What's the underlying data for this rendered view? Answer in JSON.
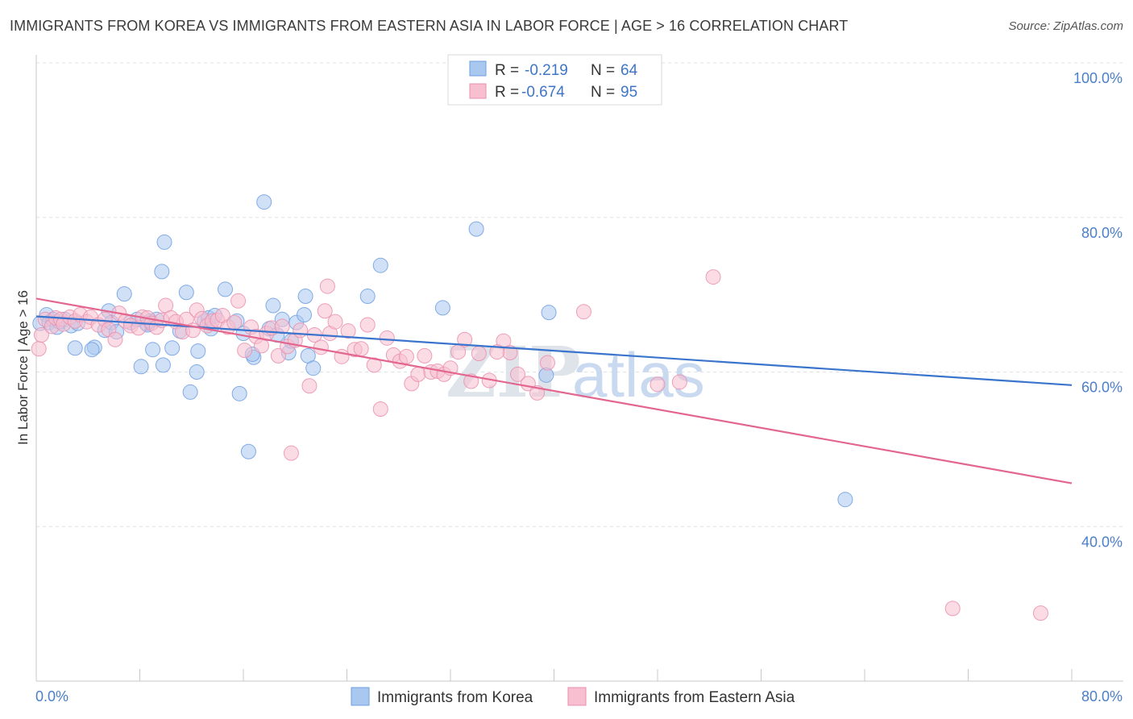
{
  "header": {
    "title": "IMMIGRANTS FROM KOREA VS IMMIGRANTS FROM EASTERN ASIA IN LABOR FORCE | AGE > 16 CORRELATION CHART",
    "source": "Source: ZipAtlas.com"
  },
  "legend": {
    "rows": [
      {
        "r_label": "R =",
        "r_value": "-0.219",
        "n_label": "N =",
        "n_value": "64"
      },
      {
        "r_label": "R =",
        "r_value": "-0.674",
        "n_label": "N =",
        "n_value": "95"
      }
    ]
  },
  "watermark": {
    "zip": "ZIP",
    "atlas": "atlas"
  },
  "colors": {
    "korea_fill": "#a9c8f0",
    "korea_stroke": "#6f9ee0",
    "korea_line": "#3a74cc",
    "easia_fill": "#f7bfd0",
    "easia_stroke": "#ea8fae",
    "easia_line": "#e3668f",
    "grid": "#dde1e6",
    "axis": "#c8c8c8",
    "tick_text": "#4a7fc9"
  },
  "chart_data": {
    "type": "scatter",
    "title": "IMMIGRANTS FROM KOREA VS IMMIGRANTS FROM EASTERN ASIA IN LABOR FORCE | AGE > 16 CORRELATION CHART",
    "xlabel": "",
    "ylabel": "In Labor Force | Age > 16",
    "xlim": [
      0,
      80
    ],
    "ylim": [
      20,
      100
    ],
    "x_tick_labels": [
      "0.0%",
      "80.0%"
    ],
    "y_ticks": [
      40,
      60,
      80,
      100
    ],
    "y_tick_labels": [
      "40.0%",
      "60.0%",
      "80.0%",
      "100.0%"
    ],
    "grid": true,
    "legend_position": "top-center",
    "series": [
      {
        "name": "Immigrants from Korea",
        "r": -0.219,
        "n": 64,
        "trend": {
          "x0": 0,
          "y0": 67.2,
          "x1": 80,
          "y1": 58.3
        },
        "points": [
          [
            0.3,
            66.3
          ],
          [
            0.8,
            67.4
          ],
          [
            1.0,
            66.4
          ],
          [
            1.3,
            66.8
          ],
          [
            1.6,
            65.8
          ],
          [
            1.8,
            66.5
          ],
          [
            2.2,
            66.8
          ],
          [
            2.7,
            66.0
          ],
          [
            3.0,
            63.1
          ],
          [
            3.2,
            66.3
          ],
          [
            4.5,
            63.2
          ],
          [
            4.3,
            62.9
          ],
          [
            5.3,
            65.4
          ],
          [
            5.6,
            67.9
          ],
          [
            5.8,
            66.4
          ],
          [
            6.2,
            65.2
          ],
          [
            6.8,
            70.1
          ],
          [
            7.3,
            66.4
          ],
          [
            7.8,
            66.8
          ],
          [
            8.1,
            60.7
          ],
          [
            8.5,
            66.3
          ],
          [
            8.6,
            66.1
          ],
          [
            8.8,
            66.6
          ],
          [
            9.0,
            62.9
          ],
          [
            9.3,
            66.8
          ],
          [
            9.8,
            60.9
          ],
          [
            9.9,
            76.8
          ],
          [
            9.7,
            73.0
          ],
          [
            10.5,
            63.1
          ],
          [
            11.1,
            65.3
          ],
          [
            11.6,
            70.3
          ],
          [
            11.9,
            57.4
          ],
          [
            12.4,
            60.0
          ],
          [
            12.5,
            62.7
          ],
          [
            13.0,
            66.6
          ],
          [
            13.3,
            67.0
          ],
          [
            13.5,
            65.6
          ],
          [
            13.8,
            67.3
          ],
          [
            14.6,
            70.7
          ],
          [
            15.5,
            66.6
          ],
          [
            15.7,
            57.2
          ],
          [
            16.0,
            65.0
          ],
          [
            16.4,
            49.7
          ],
          [
            16.8,
            61.9
          ],
          [
            16.7,
            62.3
          ],
          [
            17.6,
            82.0
          ],
          [
            18.0,
            65.6
          ],
          [
            18.3,
            68.6
          ],
          [
            18.6,
            64.8
          ],
          [
            19.0,
            66.8
          ],
          [
            19.5,
            62.5
          ],
          [
            19.7,
            64.0
          ],
          [
            20.1,
            66.4
          ],
          [
            20.7,
            67.4
          ],
          [
            21.0,
            62.1
          ],
          [
            20.8,
            69.8
          ],
          [
            21.4,
            60.5
          ],
          [
            25.6,
            69.8
          ],
          [
            26.6,
            73.8
          ],
          [
            31.4,
            68.3
          ],
          [
            34.0,
            78.5
          ],
          [
            39.4,
            59.6
          ],
          [
            39.6,
            67.7
          ],
          [
            62.5,
            43.5
          ]
        ]
      },
      {
        "name": "Immigrants from Eastern Asia",
        "r": -0.674,
        "n": 95,
        "trend": {
          "x0": 0,
          "y0": 69.5,
          "x1": 80,
          "y1": 45.6
        },
        "points": [
          [
            0.2,
            63.0
          ],
          [
            0.4,
            64.8
          ],
          [
            0.7,
            66.8
          ],
          [
            1.2,
            65.9
          ],
          [
            1.5,
            67.0
          ],
          [
            1.9,
            66.8
          ],
          [
            2.1,
            66.2
          ],
          [
            2.6,
            67.1
          ],
          [
            3.0,
            66.6
          ],
          [
            3.4,
            67.4
          ],
          [
            3.9,
            66.5
          ],
          [
            4.2,
            67.1
          ],
          [
            4.8,
            66.1
          ],
          [
            5.3,
            66.8
          ],
          [
            5.6,
            65.5
          ],
          [
            6.1,
            64.2
          ],
          [
            6.4,
            67.6
          ],
          [
            6.9,
            66.6
          ],
          [
            7.3,
            66.0
          ],
          [
            7.9,
            65.7
          ],
          [
            8.2,
            67.1
          ],
          [
            8.6,
            67.0
          ],
          [
            8.9,
            66.3
          ],
          [
            9.3,
            65.8
          ],
          [
            9.7,
            66.7
          ],
          [
            10.0,
            68.6
          ],
          [
            10.4,
            67.0
          ],
          [
            10.8,
            66.5
          ],
          [
            11.3,
            65.2
          ],
          [
            11.6,
            66.8
          ],
          [
            12.1,
            65.4
          ],
          [
            12.4,
            68.0
          ],
          [
            12.8,
            66.9
          ],
          [
            13.2,
            66.0
          ],
          [
            13.6,
            66.6
          ],
          [
            14.0,
            66.7
          ],
          [
            14.4,
            67.3
          ],
          [
            14.8,
            65.8
          ],
          [
            15.3,
            66.4
          ],
          [
            15.6,
            69.2
          ],
          [
            16.1,
            62.8
          ],
          [
            16.6,
            65.8
          ],
          [
            17.0,
            64.6
          ],
          [
            17.4,
            63.4
          ],
          [
            17.8,
            65.0
          ],
          [
            18.2,
            65.7
          ],
          [
            18.7,
            62.1
          ],
          [
            19.0,
            65.9
          ],
          [
            19.4,
            63.3
          ],
          [
            20.0,
            64.1
          ],
          [
            20.4,
            65.4
          ],
          [
            21.1,
            58.2
          ],
          [
            21.5,
            64.8
          ],
          [
            22.0,
            63.2
          ],
          [
            22.3,
            67.9
          ],
          [
            22.7,
            65.0
          ],
          [
            23.1,
            66.5
          ],
          [
            23.6,
            62.0
          ],
          [
            24.1,
            65.3
          ],
          [
            24.6,
            62.9
          ],
          [
            25.1,
            63.0
          ],
          [
            25.6,
            66.1
          ],
          [
            26.1,
            60.9
          ],
          [
            26.6,
            55.2
          ],
          [
            27.1,
            64.4
          ],
          [
            27.6,
            62.2
          ],
          [
            28.1,
            61.4
          ],
          [
            28.6,
            62.0
          ],
          [
            29.0,
            58.5
          ],
          [
            29.5,
            59.7
          ],
          [
            30.0,
            62.1
          ],
          [
            30.5,
            60.0
          ],
          [
            31.0,
            60.1
          ],
          [
            31.5,
            59.7
          ],
          [
            32.0,
            60.5
          ],
          [
            32.6,
            62.6
          ],
          [
            33.1,
            64.2
          ],
          [
            33.6,
            58.8
          ],
          [
            34.2,
            62.4
          ],
          [
            35.0,
            58.9
          ],
          [
            36.1,
            64.0
          ],
          [
            36.6,
            62.5
          ],
          [
            37.2,
            59.7
          ],
          [
            38.0,
            58.5
          ],
          [
            38.7,
            57.3
          ],
          [
            39.5,
            61.2
          ],
          [
            42.3,
            67.8
          ],
          [
            19.7,
            49.5
          ],
          [
            22.5,
            71.1
          ],
          [
            35.6,
            62.6
          ],
          [
            48.0,
            58.4
          ],
          [
            49.7,
            58.7
          ],
          [
            52.3,
            72.3
          ],
          [
            70.8,
            29.4
          ],
          [
            77.6,
            28.8
          ]
        ]
      }
    ]
  },
  "bottom_legend": {
    "korea_label": "Immigrants from Korea",
    "easia_label": "Immigrants from Eastern Asia"
  }
}
